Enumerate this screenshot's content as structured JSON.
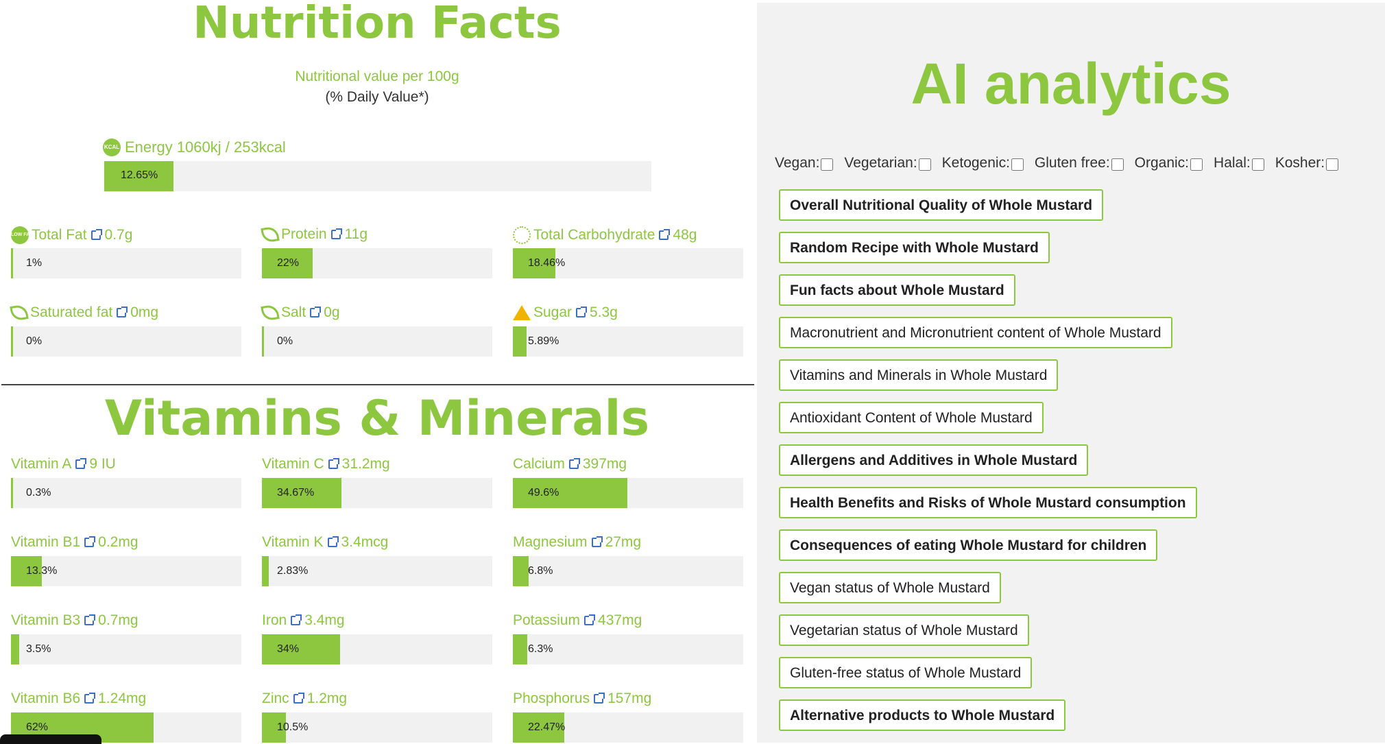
{
  "nutrition": {
    "title": "Nutrition Facts",
    "subtitle": "Nutritional value per 100g",
    "daily_value_note": "(% Daily Value*)",
    "energy": {
      "label": "Energy 1060kj / 253kcal",
      "percent_text": "12.65%",
      "percent": 12.65,
      "icon": "kcal-icon"
    },
    "items": [
      {
        "name": "Total Fat",
        "value": "0.7g",
        "percent_text": "1%",
        "percent": 1,
        "icon": "low-fat-icon"
      },
      {
        "name": "Protein",
        "value": "11g",
        "percent_text": "22%",
        "percent": 22,
        "icon": "leaf-icon"
      },
      {
        "name": "Total Carbohydrate",
        "value": "48g",
        "percent_text": "18.46%",
        "percent": 18.46,
        "icon": "grain-icon"
      },
      {
        "name": "Saturated fat",
        "value": "0mg",
        "percent_text": "0%",
        "percent": 0,
        "icon": "leaf-icon"
      },
      {
        "name": "Salt",
        "value": "0g",
        "percent_text": "0%",
        "percent": 0,
        "icon": "leaf-icon"
      },
      {
        "name": "Sugar",
        "value": "5.3g",
        "percent_text": "5.89%",
        "percent": 5.89,
        "icon": "warning-icon"
      }
    ]
  },
  "vitamins": {
    "title": "Vitamins & Minerals",
    "items": [
      {
        "name": "Vitamin A",
        "value": "9 IU",
        "percent_text": "0.3%",
        "percent": 0.3
      },
      {
        "name": "Vitamin C",
        "value": "31.2mg",
        "percent_text": "34.67%",
        "percent": 34.67
      },
      {
        "name": "Calcium",
        "value": "397mg",
        "percent_text": "49.6%",
        "percent": 49.6
      },
      {
        "name": "Vitamin B1",
        "value": "0.2mg",
        "percent_text": "13.3%",
        "percent": 13.3
      },
      {
        "name": "Vitamin K",
        "value": "3.4mcg",
        "percent_text": "2.83%",
        "percent": 2.83
      },
      {
        "name": "Magnesium",
        "value": "27mg",
        "percent_text": "6.8%",
        "percent": 6.8
      },
      {
        "name": "Vitamin B3",
        "value": "0.7mg",
        "percent_text": "3.5%",
        "percent": 3.5
      },
      {
        "name": "Iron",
        "value": "3.4mg",
        "percent_text": "34%",
        "percent": 34
      },
      {
        "name": "Potassium",
        "value": "437mg",
        "percent_text": "6.3%",
        "percent": 6.3
      },
      {
        "name": "Vitamin B6",
        "value": "1.24mg",
        "percent_text": "62%",
        "percent": 62
      },
      {
        "name": "Zinc",
        "value": "1.2mg",
        "percent_text": "10.5%",
        "percent": 10.5
      },
      {
        "name": "Phosphorus",
        "value": "157mg",
        "percent_text": "22.47%",
        "percent": 22.47
      }
    ]
  },
  "ai": {
    "title": "AI analytics",
    "filters": [
      {
        "label": "Vegan:",
        "checked": false
      },
      {
        "label": "Vegetarian:",
        "checked": false
      },
      {
        "label": "Ketogenic:",
        "checked": false
      },
      {
        "label": "Gluten free:",
        "checked": false
      },
      {
        "label": "Organic:",
        "checked": false
      },
      {
        "label": "Halal:",
        "checked": false
      },
      {
        "label": "Kosher:",
        "checked": false
      }
    ],
    "buttons": [
      {
        "label": "Overall Nutritional Quality of Whole Mustard",
        "bold": true
      },
      {
        "label": "Random Recipe with Whole Mustard",
        "bold": true
      },
      {
        "label": "Fun facts about Whole Mustard",
        "bold": true
      },
      {
        "label": "Macronutrient and Micronutrient content of Whole Mustard",
        "bold": false
      },
      {
        "label": "Vitamins and Minerals in Whole Mustard",
        "bold": false
      },
      {
        "label": "Antioxidant Content of Whole Mustard",
        "bold": false
      },
      {
        "label": "Allergens and Additives in Whole Mustard",
        "bold": true
      },
      {
        "label": "Health Benefits and Risks of Whole Mustard consumption",
        "bold": true
      },
      {
        "label": "Consequences of eating Whole Mustard for children",
        "bold": true
      },
      {
        "label": "Vegan status of Whole Mustard",
        "bold": false
      },
      {
        "label": "Vegetarian status of Whole Mustard",
        "bold": false
      },
      {
        "label": "Gluten-free status of Whole Mustard",
        "bold": false
      },
      {
        "label": "Alternative products to Whole Mustard",
        "bold": true
      }
    ]
  },
  "colors": {
    "accent": "#8dc63f",
    "track": "#f1f1f1",
    "panel": "#f2f2f2",
    "link": "#3b6fc4"
  }
}
